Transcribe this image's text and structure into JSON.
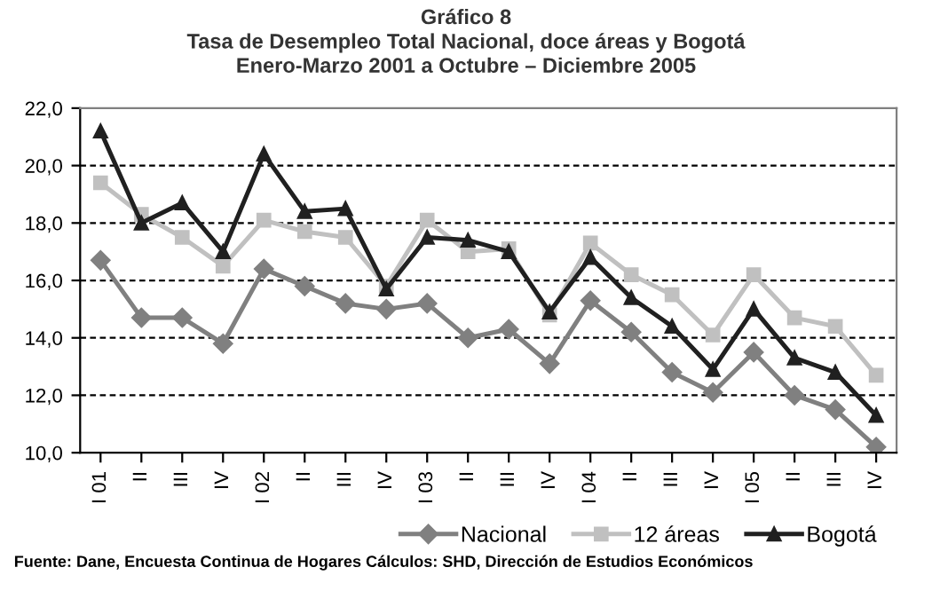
{
  "chart_data": {
    "type": "line",
    "title": "Gráfico 8\nTasa de Desempleo Total Nacional, doce áreas y Bogotá\nEnero-Marzo 2001 a Octubre – Diciembre 2005",
    "categories": [
      "I 01",
      "II",
      "III",
      "IV",
      "I 02",
      "II",
      "III",
      "IV",
      "I 03",
      "II",
      "III",
      "IV",
      "I 04",
      "II",
      "III",
      "IV",
      "I 05",
      "II",
      "III",
      "IV"
    ],
    "series": [
      {
        "name": "Nacional",
        "color": "#808080",
        "marker": "diamond",
        "values": [
          16.7,
          14.7,
          14.7,
          13.8,
          16.4,
          15.8,
          15.2,
          15.0,
          15.2,
          14.0,
          14.3,
          13.1,
          15.3,
          14.2,
          12.8,
          12.1,
          13.5,
          12.0,
          11.5,
          10.2
        ]
      },
      {
        "name": "12 áreas",
        "color": "#c0c0c0",
        "marker": "square",
        "values": [
          19.4,
          18.3,
          17.5,
          16.5,
          18.1,
          17.7,
          17.5,
          15.8,
          18.1,
          17.0,
          17.1,
          14.8,
          17.3,
          16.2,
          15.5,
          14.1,
          16.2,
          14.7,
          14.4,
          12.7
        ]
      },
      {
        "name": "Bogotá",
        "color": "#202020",
        "marker": "triangle",
        "values": [
          21.2,
          18.0,
          18.7,
          17.0,
          20.4,
          18.4,
          18.5,
          15.7,
          17.5,
          17.4,
          17.0,
          14.9,
          16.8,
          15.4,
          14.4,
          12.9,
          15.0,
          13.3,
          12.8,
          11.3
        ]
      }
    ],
    "ylim": [
      10,
      22
    ],
    "yticks": [
      {
        "value": 10,
        "label": "10,0"
      },
      {
        "value": 12,
        "label": "12,0"
      },
      {
        "value": 14,
        "label": "14,0"
      },
      {
        "value": 16,
        "label": "16,0"
      },
      {
        "value": 18,
        "label": "18,0"
      },
      {
        "value": 20,
        "label": "20,0"
      },
      {
        "value": 22,
        "label": "22,0"
      }
    ],
    "grid": "y",
    "line_style": "solid",
    "legend": "bottom right",
    "annotations": [
      "Fuente: Dane, Encuesta Continua de Hogares Cálculos: SHD, Dirección de Estudios Económicos"
    ]
  }
}
